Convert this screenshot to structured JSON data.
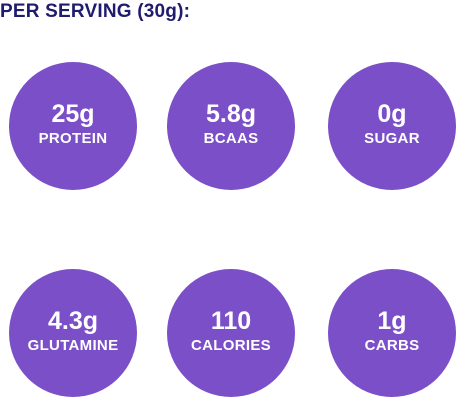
{
  "heading": "PER SERVING (30g):",
  "colors": {
    "circle": "#7b4fc8",
    "text": "#ffffff",
    "heading": "#1f1b6e"
  },
  "facts": [
    {
      "value": "25g",
      "label": "PROTEIN"
    },
    {
      "value": "5.8g",
      "label": "BCAAS"
    },
    {
      "value": "0g",
      "label": "SUGAR"
    },
    {
      "value": "4.3g",
      "label": "GLUTAMINE"
    },
    {
      "value": "110",
      "label": "CALORIES"
    },
    {
      "value": "1g",
      "label": "CARBS"
    }
  ]
}
